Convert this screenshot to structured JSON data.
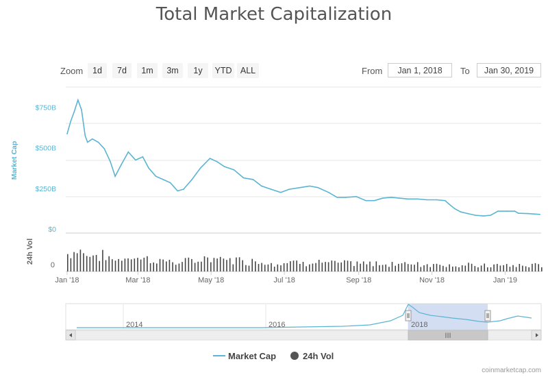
{
  "title": "Total Market Capitalization",
  "zoom": {
    "label": "Zoom",
    "buttons": [
      "1d",
      "7d",
      "1m",
      "3m",
      "1y",
      "YTD",
      "ALL"
    ]
  },
  "range": {
    "from_label": "From",
    "from_value": "Jan 1, 2018",
    "to_label": "To",
    "to_value": "Jan 30, 2019"
  },
  "legend": {
    "market_cap": "Market Cap",
    "volume": "24h Vol"
  },
  "credit": "coinmarketcap.com",
  "colors": {
    "line": "#5ab4d2",
    "volume": "#444444",
    "navigator_fill": "#c6d3ee"
  },
  "navigator": {
    "labels": [
      "2014",
      "2016",
      "2018"
    ],
    "scroll_thumb": "III"
  },
  "chart_data": {
    "type": "line",
    "x": [
      "2018-01-01",
      "2018-01-04",
      "2018-01-07",
      "2018-01-10",
      "2018-01-13",
      "2018-01-16",
      "2018-01-18",
      "2018-01-22",
      "2018-01-27",
      "2018-02-01",
      "2018-02-06",
      "2018-02-10",
      "2018-02-15",
      "2018-02-21",
      "2018-02-27",
      "2018-03-05",
      "2018-03-10",
      "2018-03-16",
      "2018-03-22",
      "2018-03-28",
      "2018-04-03",
      "2018-04-08",
      "2018-04-15",
      "2018-04-22",
      "2018-04-30",
      "2018-05-06",
      "2018-05-12",
      "2018-05-20",
      "2018-05-28",
      "2018-06-05",
      "2018-06-12",
      "2018-06-20",
      "2018-06-28",
      "2018-07-05",
      "2018-07-14",
      "2018-07-22",
      "2018-07-29",
      "2018-08-07",
      "2018-08-14",
      "2018-08-21",
      "2018-08-30",
      "2018-09-07",
      "2018-09-14",
      "2018-09-21",
      "2018-09-28",
      "2018-10-05",
      "2018-10-12",
      "2018-10-20",
      "2018-10-28",
      "2018-11-05",
      "2018-11-12",
      "2018-11-15",
      "2018-11-20",
      "2018-11-25",
      "2018-12-01",
      "2018-12-07",
      "2018-12-14",
      "2018-12-20",
      "2018-12-26",
      "2019-01-02",
      "2019-01-09",
      "2019-01-12",
      "2019-01-20",
      "2019-01-30"
    ],
    "series": [
      {
        "name": "Market Cap",
        "values": [
          612,
          690,
          750,
          820,
          760,
          600,
          560,
          580,
          560,
          520,
          440,
          350,
          420,
          500,
          450,
          470,
          400,
          350,
          330,
          310,
          260,
          270,
          330,
          400,
          460,
          440,
          410,
          390,
          340,
          330,
          290,
          270,
          250,
          270,
          280,
          290,
          280,
          250,
          220,
          220,
          225,
          200,
          200,
          215,
          220,
          215,
          210,
          210,
          205,
          205,
          200,
          180,
          150,
          130,
          120,
          110,
          105,
          110,
          135,
          135,
          135,
          122,
          120,
          115
        ]
      }
    ],
    "y_ticks": [
      "$0",
      "$250B",
      "$500B",
      "$750B"
    ],
    "ylim": [
      0,
      900
    ],
    "ylabel": "Market Cap",
    "volume_label": "24h Vol",
    "volume_tick": "0",
    "x_tick_labels": [
      "Jan '18",
      "Mar '18",
      "May '18",
      "Jul '18",
      "Sep '18",
      "Nov '18",
      "Jan '19"
    ],
    "grid": true,
    "legend_position": "bottom"
  }
}
